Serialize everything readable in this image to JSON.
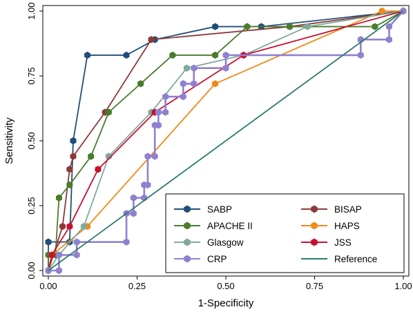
{
  "chart_data": {
    "type": "line",
    "title": "",
    "xlabel": "1-Specificity",
    "ylabel": "Sensitivity",
    "xlim": [
      0,
      1
    ],
    "ylim": [
      0,
      1
    ],
    "xticks": [
      "0.00",
      "0.25",
      "0.50",
      "0.75",
      "1.00"
    ],
    "yticks": [
      "0.00",
      "0.25",
      "0.50",
      "0.75",
      "1.00"
    ],
    "grid": false,
    "legend_position": "bottom-right",
    "series": [
      {
        "name": "SABP",
        "color": "#1f4e79",
        "marker": "hexagon",
        "x": [
          0,
          0,
          0.06,
          0.07,
          0.11,
          0.22,
          0.3,
          0.47,
          0.6,
          1.0
        ],
        "y": [
          0,
          0.11,
          0.11,
          0.5,
          0.83,
          0.83,
          0.89,
          0.94,
          0.94,
          1.0
        ]
      },
      {
        "name": "BISAP",
        "color": "#8b3a3a",
        "marker": "hexagon",
        "x": [
          0,
          0.04,
          0.06,
          0.07,
          0.16,
          0.29,
          0.68,
          1.0
        ],
        "y": [
          0,
          0.17,
          0.39,
          0.44,
          0.61,
          0.89,
          0.94,
          1.0
        ]
      },
      {
        "name": "APACHE II",
        "color": "#4a7c2a",
        "marker": "hexagon",
        "x": [
          0,
          0,
          0.02,
          0.03,
          0.06,
          0.12,
          0.17,
          0.26,
          0.35,
          0.47,
          0.56,
          0.68,
          0.92,
          1.0
        ],
        "y": [
          0,
          0.06,
          0.06,
          0.28,
          0.33,
          0.44,
          0.61,
          0.72,
          0.83,
          0.83,
          0.94,
          0.94,
          0.94,
          1.0
        ]
      },
      {
        "name": "HAPS",
        "color": "#ef8a1a",
        "marker": "hexagon",
        "x": [
          0,
          0.01,
          0.11,
          0.47,
          0.94,
          1.0
        ],
        "y": [
          0,
          0.06,
          0.17,
          0.72,
          1.0,
          1.0
        ]
      },
      {
        "name": "Glasgow",
        "color": "#7fa99b",
        "marker": "hexagon",
        "x": [
          0,
          0.03,
          0.1,
          0.17,
          0.29,
          0.39,
          0.55,
          0.73,
          1.0
        ],
        "y": [
          0,
          0.06,
          0.17,
          0.44,
          0.61,
          0.78,
          0.83,
          0.94,
          1.0
        ]
      },
      {
        "name": "JSS",
        "color": "#c8102e",
        "marker": "hexagon",
        "x": [
          0,
          0.01,
          0.06,
          0.14,
          0.3,
          0.55,
          1.0
        ],
        "y": [
          0,
          0.06,
          0.17,
          0.39,
          0.61,
          0.83,
          1.0
        ]
      },
      {
        "name": "CRP",
        "color": "#9080d0",
        "marker": "hexagon",
        "x": [
          0,
          0.03,
          0.03,
          0.08,
          0.08,
          0.22,
          0.22,
          0.24,
          0.24,
          0.27,
          0.27,
          0.28,
          0.28,
          0.3,
          0.3,
          0.31,
          0.31,
          0.33,
          0.33,
          0.38,
          0.38,
          0.41,
          0.41,
          0.5,
          0.5,
          0.88,
          0.88,
          0.96,
          0.96,
          1.0
        ],
        "y": [
          0,
          0,
          0.06,
          0.06,
          0.11,
          0.11,
          0.22,
          0.22,
          0.28,
          0.28,
          0.33,
          0.33,
          0.44,
          0.44,
          0.56,
          0.56,
          0.61,
          0.61,
          0.67,
          0.67,
          0.72,
          0.72,
          0.78,
          0.78,
          0.83,
          0.83,
          0.89,
          0.89,
          0.94,
          1.0
        ]
      },
      {
        "name": "Reference",
        "color": "#2a7a6e",
        "marker": "none",
        "x": [
          0,
          1
        ],
        "y": [
          0,
          1
        ]
      }
    ],
    "legend": [
      [
        "SABP",
        "BISAP"
      ],
      [
        "APACHE II",
        "HAPS"
      ],
      [
        "Glasgow",
        "JSS"
      ],
      [
        "CRP",
        "Reference"
      ]
    ]
  }
}
